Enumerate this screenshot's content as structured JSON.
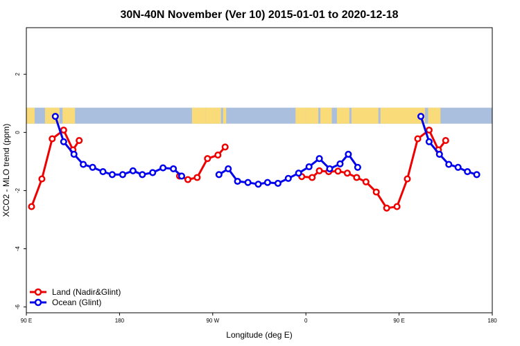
{
  "chart_data": {
    "type": "line",
    "title": "30N-40N November (Ver 10)   2015-01-01 to 2020-12-18",
    "xlabel": "Longitude (deg E)",
    "ylabel": "XCO2 - MLO trend (ppm)",
    "xlim": [
      90,
      540
    ],
    "ylim": [
      -6.2,
      3.6
    ],
    "x_ticks": [
      {
        "value": 90,
        "label": "90 E"
      },
      {
        "value": 180,
        "label": "180"
      },
      {
        "value": 270,
        "label": "90 W"
      },
      {
        "value": 360,
        "label": "0"
      },
      {
        "value": 450,
        "label": "90 E"
      },
      {
        "value": 540,
        "label": "180"
      }
    ],
    "y_ticks": [
      {
        "value": 2,
        "label": "2"
      },
      {
        "value": 0,
        "label": "0"
      },
      {
        "value": -2,
        "label": "-2"
      },
      {
        "value": -4,
        "label": "-4"
      },
      {
        "value": -6,
        "label": "-6"
      }
    ],
    "map_strip": {
      "ymin": 0.3,
      "ymax": 0.85,
      "ocean_color": "#a9bfdd",
      "land_color": "#fadb79"
    },
    "legend_position": "bottom-left",
    "series": [
      {
        "name": "Land (Nadir&Glint)",
        "color": "#ee0000",
        "segments": [
          [
            [
              95,
              -2.55
            ],
            [
              105,
              -1.6
            ],
            [
              115,
              -0.22
            ],
            [
              126,
              0.08
            ],
            [
              135,
              -0.6
            ],
            [
              141,
              -0.28
            ]
          ],
          [
            [
              238,
              -1.5
            ],
            [
              246,
              -1.62
            ],
            [
              255,
              -1.55
            ],
            [
              265,
              -0.9
            ],
            [
              275,
              -0.78
            ],
            [
              282,
              -0.5
            ]
          ],
          [
            [
              356,
              -1.52
            ],
            [
              366,
              -1.55
            ],
            [
              373,
              -1.32
            ],
            [
              382,
              -1.35
            ],
            [
              391,
              -1.33
            ],
            [
              400,
              -1.4
            ],
            [
              409,
              -1.55
            ],
            [
              418,
              -1.7
            ],
            [
              428,
              -2.05
            ],
            [
              438,
              -2.6
            ],
            [
              448,
              -2.55
            ],
            [
              458,
              -1.6
            ],
            [
              468,
              -0.22
            ],
            [
              479,
              0.08
            ],
            [
              488,
              -0.6
            ],
            [
              495,
              -0.28
            ]
          ]
        ]
      },
      {
        "name": "Ocean (Glint)",
        "color": "#0000ee",
        "segments": [
          [
            [
              118,
              0.55
            ],
            [
              126,
              -0.32
            ],
            [
              136,
              -0.75
            ],
            [
              145,
              -1.1
            ],
            [
              154,
              -1.2
            ],
            [
              164,
              -1.35
            ],
            [
              173,
              -1.45
            ],
            [
              183,
              -1.45
            ],
            [
              193,
              -1.32
            ],
            [
              202,
              -1.45
            ],
            [
              212,
              -1.38
            ],
            [
              222,
              -1.22
            ],
            [
              232,
              -1.25
            ],
            [
              240,
              -1.5
            ]
          ],
          [
            [
              276,
              -1.45
            ],
            [
              285,
              -1.25
            ],
            [
              294,
              -1.68
            ],
            [
              304,
              -1.72
            ],
            [
              314,
              -1.78
            ],
            [
              323,
              -1.72
            ],
            [
              333,
              -1.75
            ],
            [
              343,
              -1.58
            ],
            [
              353,
              -1.4
            ],
            [
              363,
              -1.18
            ],
            [
              373,
              -0.9
            ],
            [
              383,
              -1.25
            ],
            [
              393,
              -1.08
            ],
            [
              401,
              -0.75
            ],
            [
              410,
              -1.2
            ]
          ],
          [
            [
              471,
              0.55
            ],
            [
              479,
              -0.32
            ],
            [
              489,
              -0.75
            ],
            [
              498,
              -1.1
            ],
            [
              507,
              -1.2
            ],
            [
              516,
              -1.35
            ],
            [
              525,
              -1.45
            ]
          ]
        ]
      }
    ]
  }
}
